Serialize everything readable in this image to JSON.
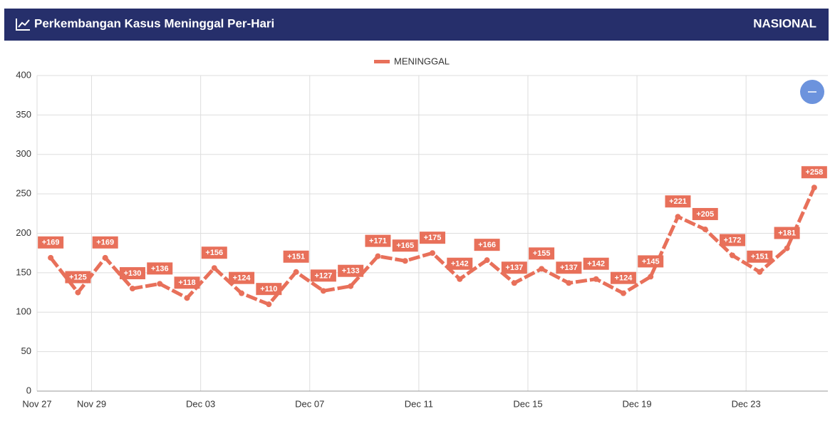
{
  "header": {
    "title": "Perkembangan Kasus Meninggal Per-Hari",
    "region": "NASIONAL"
  },
  "chart_data": {
    "type": "line",
    "categories": [
      "Nov 27",
      null,
      "Nov 29",
      null,
      null,
      null,
      "Dec 03",
      null,
      null,
      null,
      "Dec 07",
      null,
      null,
      null,
      "Dec 11",
      null,
      null,
      null,
      "Dec 15",
      null,
      null,
      null,
      "Dec 19",
      null,
      null,
      null,
      "Dec 23",
      null,
      null
    ],
    "series": [
      {
        "name": "MENINGGAL",
        "color": "#e8705a",
        "values": [
          169,
          125,
          169,
          130,
          136,
          118,
          156,
          124,
          110,
          151,
          127,
          133,
          171,
          165,
          175,
          142,
          166,
          137,
          155,
          137,
          142,
          124,
          145,
          221,
          205,
          172,
          151,
          181,
          258
        ],
        "value_labels": [
          "+169",
          "+125",
          "+169",
          "+130",
          "+136",
          "+118",
          "+156",
          "+124",
          "+110",
          "+151",
          "+127",
          "+133",
          "+171",
          "+165",
          "+175",
          "+142",
          "+166",
          "+137",
          "+155",
          "+137",
          "+142",
          "+124",
          "+145",
          "+221",
          "+205",
          "+172",
          "+151",
          "+181",
          "+258"
        ]
      }
    ],
    "ylim": [
      0,
      400
    ],
    "yticks": [
      0,
      50,
      100,
      150,
      200,
      250,
      300,
      350,
      400
    ],
    "grid": true
  }
}
